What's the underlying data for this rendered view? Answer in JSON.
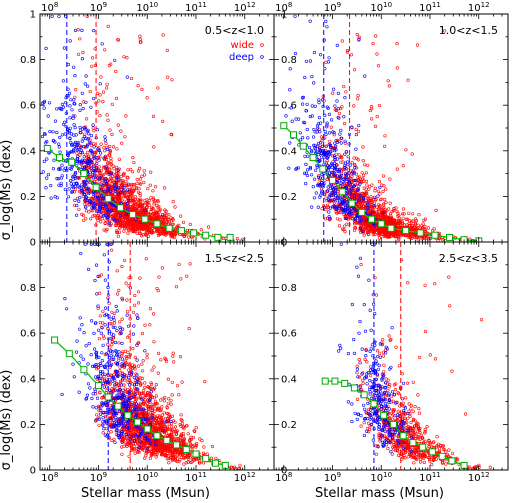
{
  "chart_data": {
    "type": "scatter",
    "xlabel": "Stellar mass  (Msun)",
    "ylabel": "σ_log(Ms) (dex)",
    "x_scale": "log",
    "xlim_log10": [
      7.8,
      12.6
    ],
    "ylim": [
      0,
      1
    ],
    "x_tick_exponents": [
      8,
      9,
      10,
      11,
      12
    ],
    "y_ticks": [
      0,
      0.2,
      0.4,
      0.6,
      0.8,
      1
    ],
    "legend": {
      "placement": "top-right",
      "entries": [
        {
          "name": "wide",
          "color": "#ff0000"
        },
        {
          "name": "deep",
          "color": "#0000ff"
        }
      ]
    },
    "panels": [
      {
        "title": "0.5<z<1.0",
        "show_legend": true,
        "blue_cut_log10": 8.35,
        "red_cut_log10": 8.95,
        "binned_median": {
          "log10_mass": [
            7.95,
            8.2,
            8.45,
            8.7,
            8.95,
            9.2,
            9.45,
            9.7,
            9.95,
            10.2,
            10.45,
            10.7,
            10.95,
            11.2,
            11.45,
            11.7
          ],
          "sigma": [
            0.41,
            0.37,
            0.35,
            0.3,
            0.24,
            0.19,
            0.15,
            0.12,
            0.1,
            0.08,
            0.06,
            0.05,
            0.04,
            0.03,
            0.02,
            0.02
          ]
        },
        "scatter": {
          "red": {
            "count": 1500,
            "min_log10": 8.5,
            "max_log10": 12.0,
            "mean_log10": 9.6,
            "spread_log10": 0.55
          },
          "blue": {
            "count": 420,
            "min_log10": 7.85,
            "max_log10": 10.5,
            "mean_log10": 8.7,
            "spread_log10": 0.45
          }
        }
      },
      {
        "title": "1.0<z<1.5",
        "show_legend": false,
        "blue_cut_log10": 8.82,
        "red_cut_log10": 9.35,
        "binned_median": {
          "log10_mass": [
            8.0,
            8.2,
            8.4,
            8.6,
            8.8,
            9.0,
            9.2,
            9.4,
            9.6,
            9.8,
            10.0,
            10.2,
            10.5,
            10.8,
            11.1,
            11.4,
            11.7,
            12.0
          ],
          "sigma": [
            0.51,
            0.47,
            0.42,
            0.37,
            0.32,
            0.27,
            0.22,
            0.17,
            0.13,
            0.1,
            0.08,
            0.06,
            0.05,
            0.04,
            0.03,
            0.02,
            0.01,
            0.005
          ]
        },
        "scatter": {
          "red": {
            "count": 1500,
            "min_log10": 8.7,
            "max_log10": 12.2,
            "mean_log10": 9.85,
            "spread_log10": 0.55
          },
          "blue": {
            "count": 420,
            "min_log10": 8.0,
            "max_log10": 10.3,
            "mean_log10": 9.0,
            "spread_log10": 0.4
          }
        }
      },
      {
        "title": "1.5<z<2.5",
        "show_legend": false,
        "blue_cut_log10": 9.2,
        "red_cut_log10": 9.65,
        "binned_median": {
          "log10_mass": [
            8.1,
            8.4,
            8.7,
            9.0,
            9.2,
            9.4,
            9.6,
            9.8,
            10.0,
            10.2,
            10.4,
            10.6,
            10.8,
            11.0,
            11.2,
            11.4,
            11.6
          ],
          "sigma": [
            0.57,
            0.51,
            0.44,
            0.37,
            0.32,
            0.28,
            0.24,
            0.21,
            0.18,
            0.15,
            0.13,
            0.11,
            0.09,
            0.07,
            0.05,
            0.03,
            0.02
          ]
        },
        "scatter": {
          "red": {
            "count": 1500,
            "min_log10": 8.9,
            "max_log10": 12.1,
            "mean_log10": 10.0,
            "spread_log10": 0.5
          },
          "blue": {
            "count": 400,
            "min_log10": 8.2,
            "max_log10": 10.5,
            "mean_log10": 9.4,
            "spread_log10": 0.35
          }
        }
      },
      {
        "title": "2.5<z<3.5",
        "show_legend": false,
        "blue_cut_log10": 9.85,
        "red_cut_log10": 10.4,
        "binned_median": {
          "log10_mass": [
            8.85,
            9.05,
            9.25,
            9.45,
            9.65,
            9.85,
            10.05,
            10.25,
            10.45,
            10.65,
            10.85,
            11.05,
            11.25,
            11.45,
            11.7
          ],
          "sigma": [
            0.39,
            0.39,
            0.38,
            0.36,
            0.33,
            0.29,
            0.24,
            0.2,
            0.15,
            0.12,
            0.1,
            0.08,
            0.06,
            0.04,
            0.02
          ]
        },
        "scatter": {
          "red": {
            "count": 650,
            "min_log10": 9.5,
            "max_log10": 12.3,
            "mean_log10": 10.5,
            "spread_log10": 0.5
          },
          "blue": {
            "count": 280,
            "min_log10": 9.0,
            "max_log10": 10.8,
            "mean_log10": 9.95,
            "spread_log10": 0.3
          }
        }
      }
    ]
  },
  "colors": {
    "wide": "#ff0000",
    "deep": "#0000ff",
    "median": "#00cc00",
    "median_marker_edge": "#00aa00",
    "cut_blue": "#0000ff",
    "cut_red": "#ff0000",
    "frame": "#000000"
  }
}
